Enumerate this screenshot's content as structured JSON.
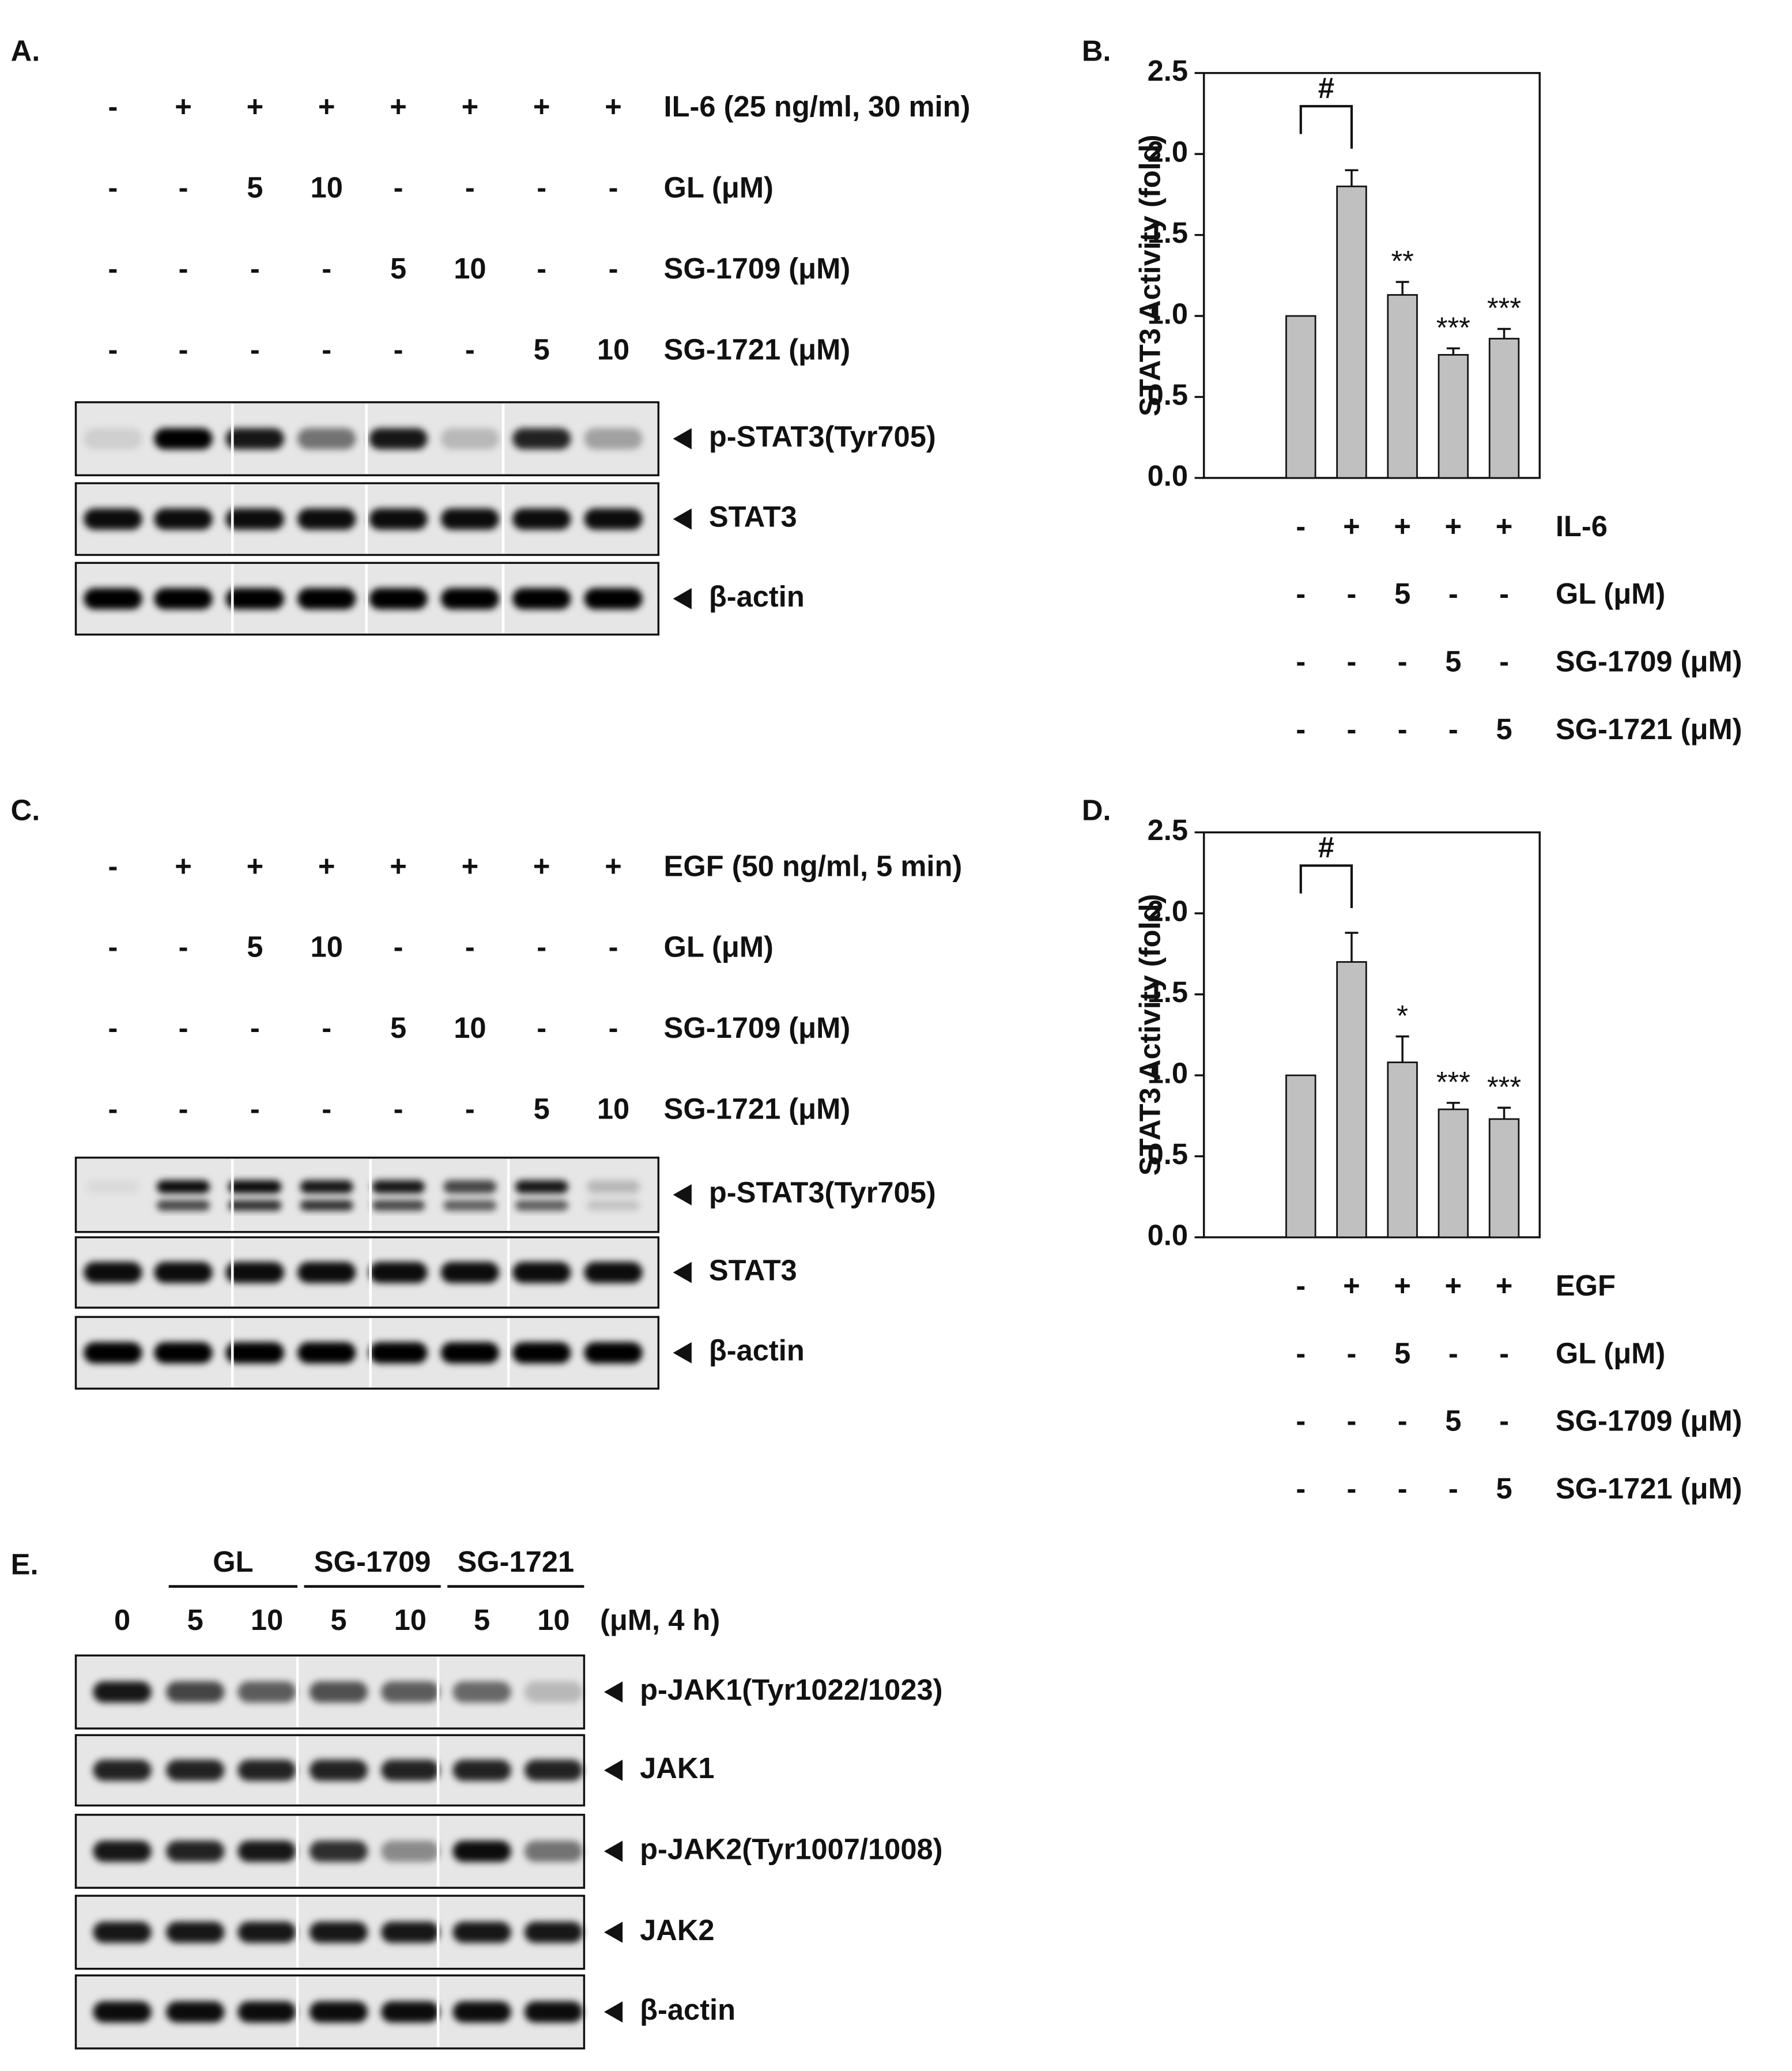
{
  "figure": {
    "A": {
      "label": "A.",
      "conditions": [
        {
          "label": "IL-6 (25 ng/ml, 30 min)",
          "cells": [
            "-",
            "+",
            "+",
            "+",
            "+",
            "+",
            "+",
            "+"
          ]
        },
        {
          "label": "GL (μM)",
          "cells": [
            "-",
            "-",
            "5",
            "10",
            "-",
            "-",
            "-",
            "-"
          ]
        },
        {
          "label": "SG-1709 (μM)",
          "cells": [
            "-",
            "-",
            "-",
            "-",
            "5",
            "10",
            "-",
            "-"
          ]
        },
        {
          "label": "SG-1721 (μM)",
          "cells": [
            "-",
            "-",
            "-",
            "-",
            "-",
            "-",
            "5",
            "10"
          ]
        }
      ],
      "blots": [
        "p-STAT3(Tyr705)",
        "STAT3",
        "β-actin"
      ]
    },
    "C": {
      "label": "C.",
      "conditions": [
        {
          "label": "EGF (50 ng/ml, 5 min)",
          "cells": [
            "-",
            "+",
            "+",
            "+",
            "+",
            "+",
            "+",
            "+"
          ]
        },
        {
          "label": "GL (μM)",
          "cells": [
            "-",
            "-",
            "5",
            "10",
            "-",
            "-",
            "-",
            "-"
          ]
        },
        {
          "label": "SG-1709 (μM)",
          "cells": [
            "-",
            "-",
            "-",
            "-",
            "5",
            "10",
            "-",
            "-"
          ]
        },
        {
          "label": "SG-1721 (μM)",
          "cells": [
            "-",
            "-",
            "-",
            "-",
            "-",
            "-",
            "5",
            "10"
          ]
        }
      ],
      "blots": [
        "p-STAT3(Tyr705)",
        "STAT3",
        "β-actin"
      ]
    },
    "E": {
      "label": "E.",
      "groups": [
        "GL",
        "SG-1709",
        "SG-1721"
      ],
      "lanes": [
        "0",
        "5",
        "10",
        "5",
        "10",
        "5",
        "10"
      ],
      "unit": "(μM, 4 h)",
      "blots": [
        "p-JAK1(Tyr1022/1023)",
        "JAK1",
        "p-JAK2(Tyr1007/1008)",
        "JAK2",
        "β-actin"
      ]
    }
  },
  "chart_data": [
    {
      "type": "bar",
      "panel_label": "B.",
      "y_label": "STAT3 Activity (fold)",
      "categories": [
        null,
        null,
        null,
        null,
        null
      ],
      "values": [
        1.0,
        1.8,
        1.13,
        0.76,
        0.86
      ],
      "errors": [
        null,
        0.1,
        0.08,
        0.04,
        0.06
      ],
      "color": "#c0c0c0",
      "ylim": [
        0,
        2.5
      ],
      "yticks": [
        {
          "value": 0,
          "label": "0.0"
        },
        0.5,
        {
          "value": 1,
          "label": "1.0"
        },
        1.5,
        {
          "value": 2,
          "label": "2.0"
        },
        2.5
      ],
      "bracket": "#",
      "stars": [
        null,
        null,
        "**",
        "***",
        "***"
      ],
      "conditions": [
        {
          "label": "IL-6",
          "cells": [
            "-",
            "+",
            "+",
            "+",
            "+"
          ]
        },
        {
          "label": "GL (μM)",
          "cells": [
            "-",
            "-",
            "5",
            "-",
            "-"
          ]
        },
        {
          "label": "SG-1709 (μM)",
          "cells": [
            "-",
            "-",
            "-",
            "5",
            "-"
          ]
        },
        {
          "label": "SG-1721 (μM)",
          "cells": [
            "-",
            "-",
            "-",
            "-",
            "5"
          ]
        }
      ]
    },
    {
      "type": "bar",
      "panel_label": "D.",
      "y_label": "STAT3 Activity (fold)",
      "categories": [
        null,
        null,
        null,
        null,
        null
      ],
      "values": [
        1.0,
        1.7,
        1.08,
        0.79,
        0.73
      ],
      "errors": [
        null,
        0.18,
        0.16,
        0.04,
        0.07
      ],
      "color": "#c0c0c0",
      "ylim": [
        0,
        2.5
      ],
      "yticks": [
        {
          "value": 0,
          "label": "0.0"
        },
        0.5,
        {
          "value": 1,
          "label": "1.0"
        },
        1.5,
        {
          "value": 2,
          "label": "2.0"
        },
        2.5
      ],
      "bracket": "#",
      "stars": [
        null,
        null,
        "*",
        "***",
        "***"
      ],
      "conditions": [
        {
          "label": "EGF",
          "cells": [
            "-",
            "+",
            "+",
            "+",
            "+"
          ]
        },
        {
          "label": "GL (μM)",
          "cells": [
            "-",
            "-",
            "5",
            "-",
            "-"
          ]
        },
        {
          "label": "SG-1709 (μM)",
          "cells": [
            "-",
            "-",
            "-",
            "5",
            "-"
          ]
        },
        {
          "label": "SG-1721 (μM)",
          "cells": [
            "-",
            "-",
            "-",
            "-",
            "5"
          ]
        }
      ]
    }
  ]
}
